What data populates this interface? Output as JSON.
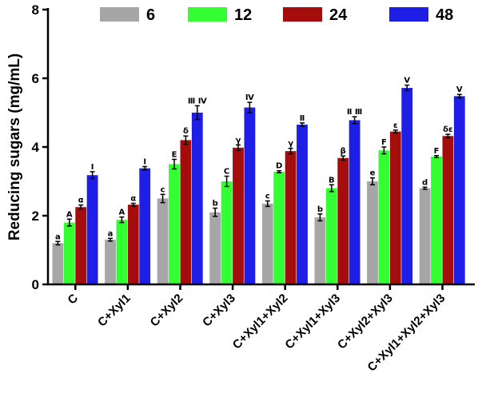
{
  "chart_data": {
    "type": "bar",
    "ylabel": "Reducing sugars (mg/mL)",
    "xlabel": "",
    "ylim": [
      0,
      8
    ],
    "yticks": [
      "0",
      "2",
      "4",
      "6",
      "8"
    ],
    "categories": [
      "C",
      "C+Xyl1",
      "C+Xyl2",
      "C+Xyl3",
      "C+Xyl1+Xyl2",
      "C+Xyl1+Xyl3",
      "C+Xyl2+Xyl3",
      "C+Xyl1+Xyl2+Xyl3"
    ],
    "legend_position": "top",
    "series": [
      {
        "name": "6",
        "color": "#a6a6a6",
        "values": [
          1.2,
          1.3,
          2.5,
          2.1,
          2.35,
          1.95,
          3.0,
          2.8
        ],
        "errors": [
          0.05,
          0.04,
          0.12,
          0.12,
          0.08,
          0.1,
          0.1,
          0.03
        ],
        "labels": [
          "a",
          "a",
          "c",
          "b",
          "c",
          "b",
          "e",
          "d"
        ]
      },
      {
        "name": "12",
        "color": "#33ff33",
        "values": [
          1.8,
          1.88,
          3.5,
          3.0,
          3.28,
          2.8,
          3.9,
          3.72
        ],
        "errors": [
          0.1,
          0.08,
          0.14,
          0.15,
          0.03,
          0.1,
          0.1,
          0.03
        ],
        "labels": [
          "A",
          "A",
          "E",
          "C",
          "D",
          "B",
          "F",
          "F"
        ]
      },
      {
        "name": "24",
        "color": "#a50d0d",
        "values": [
          2.25,
          2.32,
          4.2,
          3.98,
          3.88,
          3.68,
          4.45,
          4.32
        ],
        "errors": [
          0.06,
          0.04,
          0.12,
          0.08,
          0.08,
          0.06,
          0.04,
          0.05
        ],
        "labels": [
          "α",
          "α",
          "δ",
          "γ",
          "γ",
          "β",
          "ε",
          "δε"
        ]
      },
      {
        "name": "48",
        "color": "#1e1ee6",
        "values": [
          3.18,
          3.38,
          5.0,
          5.15,
          4.65,
          4.78,
          5.72,
          5.48
        ],
        "errors": [
          0.1,
          0.05,
          0.2,
          0.15,
          0.05,
          0.1,
          0.08,
          0.05
        ],
        "labels": [
          "Ⅰ",
          "Ⅰ",
          "Ⅲ Ⅳ",
          "Ⅳ",
          "Ⅱ",
          "Ⅱ Ⅲ",
          "Ⅴ",
          "Ⅴ"
        ]
      }
    ]
  }
}
